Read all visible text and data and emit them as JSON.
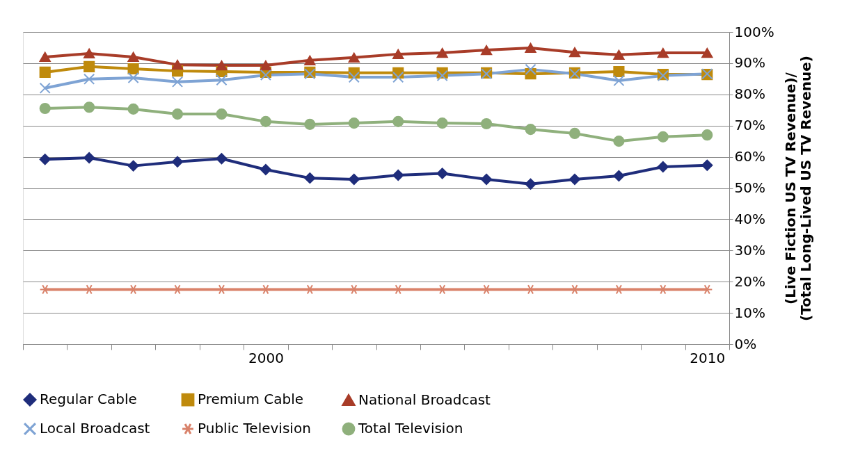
{
  "chart_data": {
    "type": "line",
    "categories": [
      null,
      null,
      null,
      null,
      null,
      "2000",
      null,
      null,
      null,
      null,
      null,
      null,
      null,
      null,
      null,
      "2010"
    ],
    "ylabel": [
      "(Live Fiction US TV Revenue)/",
      "(Total Long-Lived US TV Revenue)"
    ],
    "ylim": [
      0,
      100
    ],
    "yticks": [
      {
        "value": 0,
        "label": "0%"
      },
      {
        "value": 10,
        "label": "10%"
      },
      {
        "value": 20,
        "label": "20%"
      },
      {
        "value": 30,
        "label": "30%"
      },
      {
        "value": 40,
        "label": "40%"
      },
      {
        "value": 50,
        "label": "50%"
      },
      {
        "value": 60,
        "label": "60%"
      },
      {
        "value": 70,
        "label": "70%"
      },
      {
        "value": 80,
        "label": "80%"
      },
      {
        "value": 90,
        "label": "90%"
      },
      {
        "value": 100,
        "label": "100%"
      }
    ],
    "grid": "y",
    "legend": "bottom",
    "line_style": "solid",
    "series": [
      {
        "name": "Regular Cable",
        "color": "#1f2d7b",
        "marker": "diamond",
        "values": [
          59.2,
          59.7,
          57.1,
          58.4,
          59.4,
          55.9,
          53.2,
          52.8,
          54.1,
          54.7,
          52.8,
          51.3,
          52.8,
          53.9,
          56.8,
          57.3
        ]
      },
      {
        "name": "Premium Cable",
        "color": "#bf8a0c",
        "marker": "square",
        "values": [
          87.1,
          88.9,
          88.2,
          87.5,
          87.3,
          87.1,
          87.1,
          86.9,
          86.9,
          86.9,
          86.9,
          86.6,
          86.9,
          87.3,
          86.4,
          86.4
        ]
      },
      {
        "name": "National Broadcast",
        "color": "#a83c28",
        "marker": "triangle",
        "values": [
          92.0,
          93.1,
          92.0,
          89.5,
          89.3,
          89.3,
          90.9,
          91.8,
          92.9,
          93.3,
          94.2,
          94.9,
          93.5,
          92.7,
          93.3,
          93.3
        ]
      },
      {
        "name": "Local Broadcast",
        "color": "#7ea3d4",
        "marker": "cross",
        "values": [
          82.0,
          84.9,
          85.3,
          84.0,
          84.6,
          86.2,
          86.6,
          85.5,
          85.5,
          86.0,
          86.6,
          88.0,
          86.6,
          84.4,
          86.0,
          86.6
        ]
      },
      {
        "name": "Public Television",
        "color": "#d9826a",
        "marker": "cross",
        "values": [
          17.5,
          17.5,
          17.5,
          17.5,
          17.5,
          17.5,
          17.5,
          17.5,
          17.5,
          17.5,
          17.5,
          17.5,
          17.5,
          17.5,
          17.5,
          17.5
        ]
      },
      {
        "name": "Total Television",
        "color": "#8fb07c",
        "marker": "circle",
        "values": [
          75.5,
          75.9,
          75.3,
          73.7,
          73.7,
          71.3,
          70.4,
          70.8,
          71.3,
          70.8,
          70.6,
          68.8,
          67.5,
          65.0,
          66.4,
          67.0
        ]
      }
    ]
  }
}
